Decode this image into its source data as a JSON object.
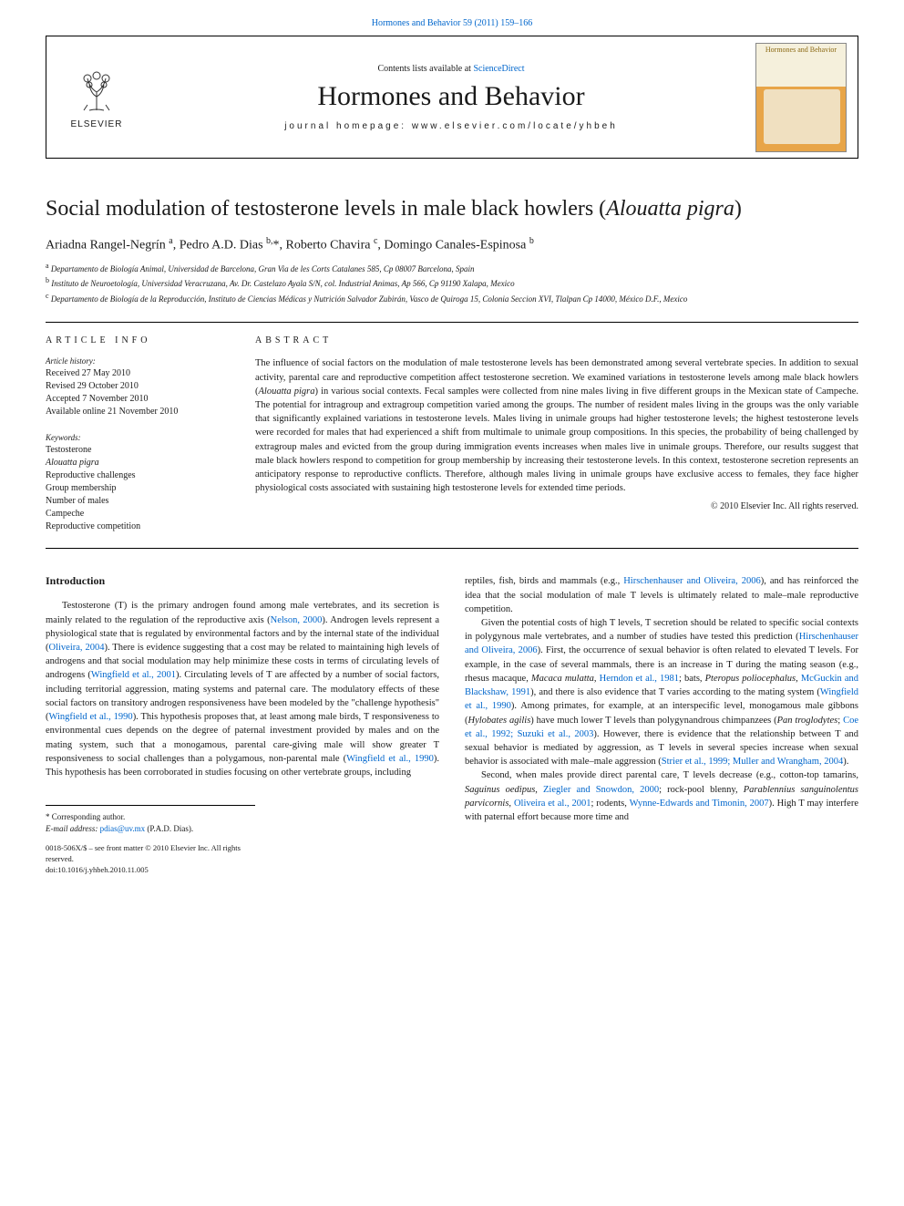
{
  "top_link": {
    "prefix": "",
    "journal": "Hormones and Behavior 59 (2011) 159–166"
  },
  "header": {
    "elsevier": "ELSEVIER",
    "contents_prefix": "Contents lists available at ",
    "contents_link": "ScienceDirect",
    "journal_title": "Hormones and Behavior",
    "homepage": "journal homepage: www.elsevier.com/locate/yhbeh",
    "cover_title": "Hormones and Behavior"
  },
  "article": {
    "title": "Social modulation of testosterone levels in male black howlers (Alouatta pigra)",
    "authors_html": "Ariadna Rangel-Negrín <sup>a</sup>, Pedro A.D. Dias <sup>b,</sup>*, Roberto Chavira <sup>c</sup>, Domingo Canales-Espinosa <sup>b</sup>",
    "affiliations": {
      "a": "Departamento de Biología Animal, Universidad de Barcelona, Gran Via de les Corts Catalanes 585, Cp 08007 Barcelona, Spain",
      "b": "Instituto de Neuroetología, Universidad Veracruzana, Av. Dr. Castelazo Ayala S/N, col. Industrial Animas, Ap 566, Cp 91190 Xalapa, Mexico",
      "c": "Departamento de Biología de la Reproducción, Instituto de Ciencias Médicas y Nutrición Salvador Zubirán, Vasco de Quiroga 15, Colonia Seccion XVI, Tlalpan Cp 14000, México D.F., Mexico"
    }
  },
  "meta": {
    "article_info_label": "ARTICLE INFO",
    "abstract_label": "ABSTRACT",
    "history_label": "Article history:",
    "history": [
      "Received 27 May 2010",
      "Revised 29 October 2010",
      "Accepted 7 November 2010",
      "Available online 21 November 2010"
    ],
    "keywords_label": "Keywords:",
    "keywords": [
      "Testosterone",
      "Alouatta pigra",
      "Reproductive challenges",
      "Group membership",
      "Number of males",
      "Campeche",
      "Reproductive competition"
    ],
    "abstract": "The influence of social factors on the modulation of male testosterone levels has been demonstrated among several vertebrate species. In addition to sexual activity, parental care and reproductive competition affect testosterone secretion. We examined variations in testosterone levels among male black howlers (Alouatta pigra) in various social contexts. Fecal samples were collected from nine males living in five different groups in the Mexican state of Campeche. The potential for intragroup and extragroup competition varied among the groups. The number of resident males living in the groups was the only variable that significantly explained variations in testosterone levels. Males living in unimale groups had higher testosterone levels; the highest testosterone levels were recorded for males that had experienced a shift from multimale to unimale group compositions. In this species, the probability of being challenged by extragroup males and evicted from the group during immigration events increases when males live in unimale groups. Therefore, our results suggest that male black howlers respond to competition for group membership by increasing their testosterone levels. In this context, testosterone secretion represents an anticipatory response to reproductive conflicts. Therefore, although males living in unimale groups have exclusive access to females, they face higher physiological costs associated with sustaining high testosterone levels for extended time periods.",
    "copyright": "© 2010 Elsevier Inc. All rights reserved."
  },
  "intro": {
    "heading": "Introduction",
    "left_paras": [
      "Testosterone (T) is the primary androgen found among male vertebrates, and its secretion is mainly related to the regulation of the reproductive axis (<span class=\"ref\">Nelson, 2000</span>). Androgen levels represent a physiological state that is regulated by environmental factors and by the internal state of the individual (<span class=\"ref\">Oliveira, 2004</span>). There is evidence suggesting that a cost may be related to maintaining high levels of androgens and that social modulation may help minimize these costs in terms of circulating levels of androgens (<span class=\"ref\">Wingfield et al., 2001</span>). Circulating levels of T are affected by a number of social factors, including territorial aggression, mating systems and paternal care. The modulatory effects of these social factors on transitory androgen responsiveness have been modeled by the \"challenge hypothesis\" (<span class=\"ref\">Wingfield et al., 1990</span>). This hypothesis proposes that, at least among male birds, T responsiveness to environmental cues depends on the degree of paternal investment provided by males and on the mating system, such that a monogamous, parental care-giving male will show greater T responsiveness to social challenges than a polygamous, non-parental male (<span class=\"ref\">Wingfield et al., 1990</span>). This hypothesis has been corroborated in studies focusing on other vertebrate groups, including"
    ],
    "right_paras": [
      "reptiles, fish, birds and mammals (e.g., <span class=\"ref\">Hirschenhauser and Oliveira, 2006</span>), and has reinforced the idea that the social modulation of male T levels is ultimately related to male–male reproductive competition.",
      "Given the potential costs of high T levels, T secretion should be related to specific social contexts in polygynous male vertebrates, and a number of studies have tested this prediction (<span class=\"ref\">Hirschenhauser and Oliveira, 2006</span>). First, the occurrence of sexual behavior is often related to elevated T levels. For example, in the case of several mammals, there is an increase in T during the mating season (e.g., rhesus macaque, <i>Macaca mulatta</i>, <span class=\"ref\">Herndon et al., 1981</span>; bats, <i>Pteropus poliocephalus</i>, <span class=\"ref\">McGuckin and Blackshaw, 1991</span>), and there is also evidence that T varies according to the mating system (<span class=\"ref\">Wingfield et al., 1990</span>). Among primates, for example, at an interspecific level, monogamous male gibbons (<i>Hylobates agilis</i>) have much lower T levels than polygynandrous chimpanzees (<i>Pan troglodytes</i>; <span class=\"ref\">Coe et al., 1992; Suzuki et al., 2003</span>). However, there is evidence that the relationship between T and sexual behavior is mediated by aggression, as T levels in several species increase when sexual behavior is associated with male–male aggression (<span class=\"ref\">Strier et al., 1999; Muller and Wrangham, 2004</span>).",
      "Second, when males provide direct parental care, T levels decrease (e.g., cotton-top tamarins, <i>Saguinus oedipus</i>, <span class=\"ref\">Ziegler and Snowdon, 2000</span>; rock-pool blenny, <i>Parablennius sanguinolentus parvicornis</i>, <span class=\"ref\">Oliveira et al., 2001</span>; rodents, <span class=\"ref\">Wynne-Edwards and Timonin, 2007</span>). High T may interfere with paternal effort because more time and"
    ]
  },
  "footer": {
    "corresponding": "* Corresponding author.",
    "email_label": "E-mail address:",
    "email": "pdias@uv.mx",
    "email_suffix": "(P.A.D. Dias).",
    "issn_line": "0018-506X/$ – see front matter © 2010 Elsevier Inc. All rights reserved.",
    "doi_line": "doi:10.1016/j.yhbeh.2010.11.005"
  },
  "colors": {
    "link": "#0066cc",
    "text": "#1a1a1a",
    "cover_top": "#f5f0dc",
    "cover_bottom": "#e8a548"
  }
}
